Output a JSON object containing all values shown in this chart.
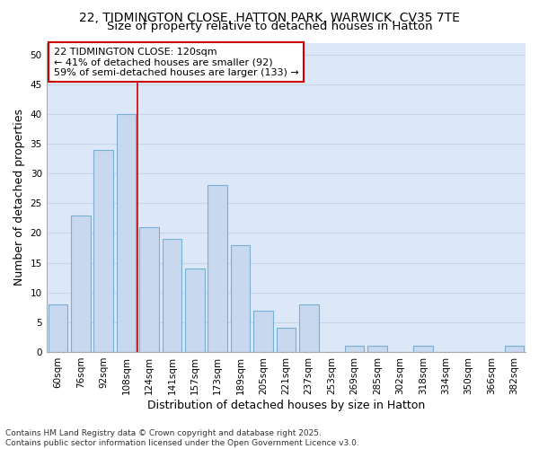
{
  "title_line1": "22, TIDMINGTON CLOSE, HATTON PARK, WARWICK, CV35 7TE",
  "title_line2": "Size of property relative to detached houses in Hatton",
  "xlabel": "Distribution of detached houses by size in Hatton",
  "ylabel": "Number of detached properties",
  "categories": [
    "60sqm",
    "76sqm",
    "92sqm",
    "108sqm",
    "124sqm",
    "141sqm",
    "157sqm",
    "173sqm",
    "189sqm",
    "205sqm",
    "221sqm",
    "237sqm",
    "253sqm",
    "269sqm",
    "285sqm",
    "302sqm",
    "318sqm",
    "334sqm",
    "350sqm",
    "366sqm",
    "382sqm"
  ],
  "values": [
    8,
    23,
    34,
    40,
    21,
    19,
    14,
    28,
    18,
    7,
    4,
    8,
    0,
    1,
    1,
    0,
    1,
    0,
    0,
    0,
    1
  ],
  "bar_color": "#c8d8ee",
  "bar_edge_color": "#7aafd4",
  "grid_color": "#c8d4e8",
  "plot_bg_color": "#dce8f8",
  "fig_bg_color": "#ffffff",
  "annotation_box_text": "22 TIDMINGTON CLOSE: 120sqm\n← 41% of detached houses are smaller (92)\n59% of semi-detached houses are larger (133) →",
  "vline_x": 4,
  "vline_color": "#cc0000",
  "ylim": [
    0,
    52
  ],
  "yticks": [
    0,
    5,
    10,
    15,
    20,
    25,
    30,
    35,
    40,
    45,
    50
  ],
  "footer_text": "Contains HM Land Registry data © Crown copyright and database right 2025.\nContains public sector information licensed under the Open Government Licence v3.0.",
  "title_fontsize": 10,
  "subtitle_fontsize": 9.5,
  "axis_label_fontsize": 9,
  "tick_fontsize": 7.5,
  "annotation_fontsize": 8,
  "footer_fontsize": 6.5
}
